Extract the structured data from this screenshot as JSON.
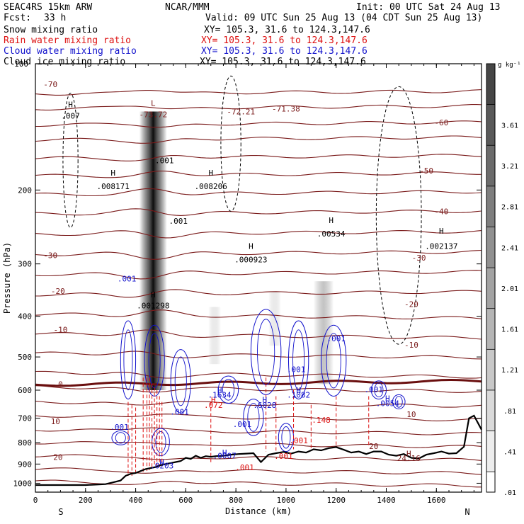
{
  "header": {
    "model": "SEAC4RS 15km ARW",
    "org": "NCAR/MMM",
    "init": "Init: 00 UTC Sat 24 Aug 13",
    "fcst_label": "Fcst:",
    "fcst_value": "33 h",
    "valid": "Valid: 09 UTC Sun 25 Aug 13 (04 CDT Sun 25 Aug 13)",
    "fields": [
      {
        "name": "Snow mixing ratio",
        "color": "#000000",
        "xy": "XY= 105.3, 31.6 to 124.3,147.6"
      },
      {
        "name": "Rain water mixing ratio",
        "color": "#dd1111",
        "xy": "XY= 105.3, 31.6 to 124.3,147.6"
      },
      {
        "name": "Cloud water mixing ratio",
        "color": "#1111cc",
        "xy": "XY= 105.3, 31.6 to 124.3,147.6"
      },
      {
        "name": "Cloud ice mixing ratio",
        "color": "#000000",
        "xy": "XY= 105.3, 31.6 to 124.3,147.6"
      }
    ]
  },
  "chart_data": {
    "type": "contour cross-section",
    "xlabel": "Distance (km)",
    "ylabel": "Pressure (hPa)",
    "xlim": [
      0,
      1780
    ],
    "ylim": [
      1050,
      100
    ],
    "y_scale": "log",
    "x_ticks": [
      0,
      200,
      400,
      600,
      800,
      1000,
      1200,
      1400,
      1600
    ],
    "y_ticks": [
      200,
      300,
      400,
      500,
      600,
      700,
      800,
      900,
      1000
    ],
    "y_top_label": "100",
    "direction_labels": {
      "left": "S",
      "right": "N"
    },
    "colorbar": {
      "unit": "g kg⁻¹",
      "labels": [
        "3.61",
        "3.21",
        "2.81",
        "2.41",
        "2.01",
        "1.61",
        "1.21",
        ".81",
        ".41",
        ".01"
      ]
    },
    "temperature_contours": {
      "color": "#7a1a1a",
      "zero_line_color": "#6a0f0f",
      "levels": [
        {
          "label": "-60",
          "x": 1620,
          "p": 138
        },
        {
          "label": "-50",
          "x": 1560,
          "p": 180
        },
        {
          "label": "-40",
          "x": 1620,
          "p": 225
        },
        {
          "label": "-30",
          "x": 60,
          "p": 286
        },
        {
          "label": "-30",
          "x": 1530,
          "p": 290
        },
        {
          "label": "-20",
          "x": 90,
          "p": 348
        },
        {
          "label": "-20",
          "x": 1500,
          "p": 374
        },
        {
          "label": "-10",
          "x": 100,
          "p": 430
        },
        {
          "label": "-10",
          "x": 1500,
          "p": 468
        },
        {
          "label": "0",
          "x": 100,
          "p": 580
        },
        {
          "label": "10",
          "x": 80,
          "p": 712
        },
        {
          "label": "10",
          "x": 1500,
          "p": 685
        },
        {
          "label": "20",
          "x": 90,
          "p": 866
        },
        {
          "label": "20",
          "x": 1350,
          "p": 815
        }
      ],
      "extrema": [
        {
          "label": "L",
          "x": 470,
          "p": 124
        },
        {
          "label": "-73.72",
          "x": 470,
          "p": 132
        },
        {
          "label": "-72.21",
          "x": 820,
          "p": 130
        },
        {
          "label": "-71.38",
          "x": 1000,
          "p": 128
        },
        {
          "label": "-70",
          "x": 60,
          "p": 112
        },
        {
          "label": "H",
          "x": 1490,
          "p": 850
        },
        {
          "label": "24.16",
          "x": 1490,
          "p": 872
        }
      ]
    },
    "snow_ice_extrema": [
      {
        "label": "H",
        "x": 140,
        "p": 125
      },
      {
        "label": ".007",
        "x": 140,
        "p": 133
      },
      {
        "label": "H",
        "x": 310,
        "p": 182
      },
      {
        "label": ".008171",
        "x": 310,
        "p": 196
      },
      {
        "label": ".001",
        "x": 515,
        "p": 170
      },
      {
        "label": ".001",
        "x": 570,
        "p": 237
      },
      {
        "label": "H",
        "x": 700,
        "p": 182
      },
      {
        "label": ".008206",
        "x": 700,
        "p": 196
      },
      {
        "label": "H",
        "x": 860,
        "p": 272
      },
      {
        "label": ".000923",
        "x": 860,
        "p": 293
      },
      {
        "label": "H",
        "x": 1180,
        "p": 236
      },
      {
        "label": ".00534",
        "x": 1180,
        "p": 254
      },
      {
        "label": "H",
        "x": 1620,
        "p": 250
      },
      {
        "label": ".002137",
        "x": 1620,
        "p": 272
      },
      {
        "label": "H",
        "x": 470,
        "p": 355
      },
      {
        "label": ".001298",
        "x": 470,
        "p": 377
      }
    ],
    "rain_extrema": [
      {
        "label": "H",
        "x": 710,
        "p": 632
      },
      {
        "label": ".072",
        "x": 710,
        "p": 651
      },
      {
        "label": ".148",
        "x": 1140,
        "p": 706
      },
      {
        "label": ".001",
        "x": 1050,
        "p": 790
      },
      {
        "label": ".001",
        "x": 990,
        "p": 862
      },
      {
        "label": ".001",
        "x": 835,
        "p": 917
      }
    ],
    "cloud_water_extrema": [
      {
        "label": ".001",
        "x": 365,
        "p": 325
      },
      {
        "label": ".001",
        "x": 1040,
        "p": 535
      },
      {
        "label": ".001",
        "x": 1200,
        "p": 452
      },
      {
        "label": ".001",
        "x": 1350,
        "p": 598
      },
      {
        "label": "H",
        "x": 735,
        "p": 600
      },
      {
        "label": ".1634",
        "x": 735,
        "p": 615
      },
      {
        "label": "H",
        "x": 915,
        "p": 632
      },
      {
        "label": ".6028",
        "x": 915,
        "p": 651
      },
      {
        "label": "H",
        "x": 1050,
        "p": 600
      },
      {
        "label": ".1082",
        "x": 1050,
        "p": 615
      },
      {
        "label": "H",
        "x": 1405,
        "p": 628
      },
      {
        "label": ".0054",
        "x": 1405,
        "p": 645
      },
      {
        "label": ".001",
        "x": 575,
        "p": 675
      },
      {
        "label": ".001",
        "x": 825,
        "p": 723
      },
      {
        "label": ".001",
        "x": 335,
        "p": 735
      },
      {
        "label": "H",
        "x": 755,
        "p": 845
      },
      {
        "label": ".0007",
        "x": 755,
        "p": 860
      },
      {
        "label": "H",
        "x": 505,
        "p": 890
      },
      {
        "label": ".0203",
        "x": 505,
        "p": 908
      }
    ],
    "terrain_profile": {
      "x": [
        0,
        60,
        200,
        280,
        310,
        340,
        360,
        380,
        400,
        420,
        440,
        460,
        480,
        500,
        520,
        540,
        560,
        580,
        600,
        620,
        640,
        660,
        680,
        700,
        720,
        750,
        780,
        810,
        840,
        870,
        900,
        930,
        960,
        990,
        1020,
        1050,
        1080,
        1110,
        1140,
        1170,
        1200,
        1230,
        1260,
        1290,
        1320,
        1350,
        1380,
        1410,
        1440,
        1470,
        1500,
        1530,
        1560,
        1590,
        1620,
        1650,
        1680,
        1710,
        1730,
        1750,
        1780
      ],
      "p": [
        1010,
        1010,
        1010,
        1005,
        995,
        985,
        960,
        950,
        945,
        935,
        925,
        920,
        915,
        905,
        900,
        895,
        890,
        885,
        870,
        875,
        860,
        870,
        862,
        865,
        862,
        860,
        855,
        852,
        850,
        848,
        890,
        855,
        848,
        842,
        850,
        840,
        845,
        830,
        835,
        825,
        820,
        832,
        845,
        840,
        852,
        840,
        840,
        855,
        860,
        852,
        870,
        873,
        855,
        848,
        840,
        850,
        848,
        818,
        700,
        690,
        745
      ]
    }
  }
}
